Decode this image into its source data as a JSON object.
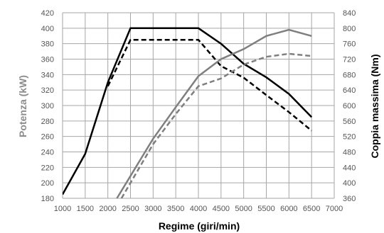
{
  "chart_data": {
    "type": "line",
    "xlabel": "Regime (giri/min)",
    "ylabel_left": "Potenza (kW)",
    "ylabel_right": "Coppia massima (Nm)",
    "xlim": [
      1000,
      7000
    ],
    "x_ticks": [
      1000,
      1500,
      2000,
      2500,
      3000,
      3500,
      4000,
      4500,
      5000,
      5500,
      6000,
      6500,
      7000
    ],
    "ylim_left": [
      180,
      420
    ],
    "y_ticks_left": [
      180,
      200,
      220,
      240,
      260,
      280,
      300,
      320,
      340,
      360,
      380,
      400,
      420
    ],
    "ylim_right": [
      360,
      840
    ],
    "y_ticks_right": [
      360,
      400,
      440,
      480,
      520,
      560,
      600,
      640,
      680,
      720,
      760,
      800,
      840
    ],
    "grid": true,
    "colors": {
      "black": "#000000",
      "gray": "#7f7f7f",
      "left_axis_title": "#8c8c8c",
      "right_axis_title": "#000000",
      "grid": "#a6a6a6"
    },
    "series": [
      {
        "axis": "right",
        "color": "black",
        "dash": false,
        "points": [
          [
            1000,
            370
          ],
          [
            1500,
            475
          ],
          [
            2000,
            660
          ],
          [
            2500,
            800
          ],
          [
            4000,
            800
          ],
          [
            4500,
            760
          ],
          [
            5000,
            708
          ],
          [
            5500,
            673
          ],
          [
            6000,
            630
          ],
          [
            6500,
            570
          ]
        ]
      },
      {
        "axis": "right",
        "color": "black",
        "dash": true,
        "points": [
          [
            2000,
            650
          ],
          [
            2500,
            770
          ],
          [
            4000,
            770
          ],
          [
            4500,
            702
          ],
          [
            5000,
            672
          ],
          [
            5500,
            627
          ],
          [
            6000,
            583
          ],
          [
            6500,
            535
          ]
        ]
      },
      {
        "axis": "left",
        "color": "gray",
        "dash": false,
        "points": [
          [
            2200,
            180
          ],
          [
            3000,
            257
          ],
          [
            3500,
            298
          ],
          [
            4000,
            338
          ],
          [
            4500,
            360
          ],
          [
            5000,
            373
          ],
          [
            5500,
            390
          ],
          [
            6000,
            398
          ],
          [
            6500,
            390
          ]
        ]
      },
      {
        "axis": "left",
        "color": "gray",
        "dash": true,
        "points": [
          [
            2300,
            180
          ],
          [
            3000,
            250
          ],
          [
            3500,
            289
          ],
          [
            4000,
            325
          ],
          [
            4500,
            335
          ],
          [
            5000,
            353
          ],
          [
            5500,
            363
          ],
          [
            6000,
            367
          ],
          [
            6500,
            364
          ]
        ]
      }
    ]
  }
}
